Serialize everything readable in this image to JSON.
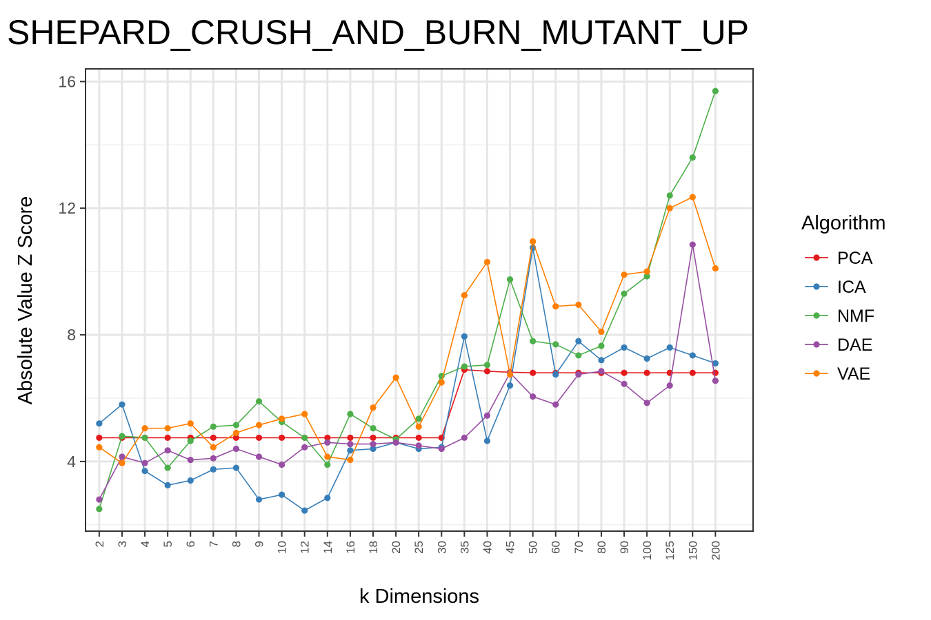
{
  "chart_data": {
    "type": "line",
    "title": "SHEPARD_CRUSH_AND_BURN_MUTANT_UP",
    "xlabel": "k Dimensions",
    "ylabel": "Absolute Value Z Score",
    "categories": [
      "2",
      "3",
      "4",
      "5",
      "6",
      "7",
      "8",
      "9",
      "10",
      "12",
      "14",
      "16",
      "18",
      "20",
      "25",
      "30",
      "35",
      "40",
      "45",
      "50",
      "60",
      "70",
      "80",
      "90",
      "100",
      "125",
      "150",
      "200"
    ],
    "ylim": [
      1.8,
      16.4
    ],
    "yticks": [
      4,
      8,
      12,
      16
    ],
    "grid": true,
    "legend": {
      "title": "Algorithm",
      "position": "right"
    },
    "series": [
      {
        "name": "PCA",
        "color": "#E41A1C",
        "values": [
          4.75,
          4.75,
          4.75,
          4.75,
          4.75,
          4.75,
          4.75,
          4.75,
          4.75,
          4.75,
          4.75,
          4.75,
          4.75,
          4.75,
          4.75,
          4.75,
          6.9,
          6.85,
          6.82,
          6.8,
          6.8,
          6.8,
          6.8,
          6.8,
          6.8,
          6.8,
          6.8,
          6.8
        ]
      },
      {
        "name": "ICA",
        "color": "#377EB8",
        "values": [
          5.2,
          5.8,
          3.7,
          3.25,
          3.4,
          3.75,
          3.8,
          2.8,
          2.95,
          2.45,
          2.85,
          4.35,
          4.4,
          4.6,
          4.4,
          4.45,
          7.95,
          4.65,
          6.4,
          10.75,
          6.75,
          7.8,
          7.2,
          7.6,
          7.25,
          7.6,
          7.35,
          7.1
        ]
      },
      {
        "name": "NMF",
        "color": "#4DAF4A",
        "values": [
          2.5,
          4.8,
          4.75,
          3.8,
          4.65,
          5.1,
          5.15,
          5.9,
          5.25,
          4.75,
          3.9,
          5.5,
          5.05,
          4.7,
          5.35,
          6.7,
          7.0,
          7.05,
          9.75,
          7.8,
          7.7,
          7.35,
          7.65,
          9.3,
          9.85,
          12.4,
          13.6,
          15.7
        ]
      },
      {
        "name": "DAE",
        "color": "#984EA3",
        "values": [
          2.8,
          4.15,
          3.95,
          4.35,
          4.05,
          4.1,
          4.4,
          4.15,
          3.9,
          4.45,
          4.6,
          4.55,
          4.55,
          4.6,
          4.5,
          4.4,
          4.75,
          5.45,
          6.8,
          6.05,
          5.8,
          6.75,
          6.85,
          6.45,
          5.85,
          6.4,
          10.85,
          6.55
        ]
      },
      {
        "name": "VAE",
        "color": "#FF7F00",
        "values": [
          4.45,
          3.95,
          5.05,
          5.05,
          5.2,
          4.45,
          4.9,
          5.15,
          5.35,
          5.5,
          4.15,
          4.05,
          5.7,
          6.65,
          5.1,
          6.5,
          9.25,
          10.3,
          6.75,
          10.95,
          8.9,
          8.95,
          8.1,
          9.9,
          10.0,
          12.0,
          12.35,
          10.1
        ]
      }
    ]
  }
}
